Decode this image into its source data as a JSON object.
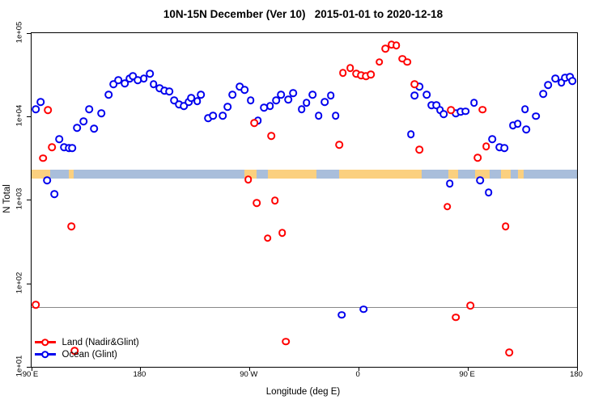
{
  "header": {
    "title": "10N-15N December (Ver 10)   2015-01-01 to 2020-12-18"
  },
  "chart_data": {
    "type": "scatter",
    "title": "10N-15N December (Ver 10)   2015-01-01 to 2020-12-18",
    "xlabel": "Longitude (deg E)",
    "ylabel": "N Total",
    "x_axis": {
      "note": "longitude axis wraps eastward from 90E around the globe to 180",
      "xlim_deg": [
        90,
        540
      ],
      "ticks": [
        {
          "deg": 90,
          "label": "90 E"
        },
        {
          "deg": 180,
          "label": "180"
        },
        {
          "deg": 270,
          "label": "90 W"
        },
        {
          "deg": 360,
          "label": "0"
        },
        {
          "deg": 450,
          "label": "90 E"
        },
        {
          "deg": 540,
          "label": "180"
        }
      ]
    },
    "y_axis": {
      "scale": "log10",
      "ylim": [
        10,
        100000
      ],
      "ticks": [
        {
          "value": 100000,
          "label": "1e+05"
        },
        {
          "value": 10000,
          "label": "1e+04"
        },
        {
          "value": 1000,
          "label": "1e+03"
        },
        {
          "value": 100,
          "label": "1e+02"
        },
        {
          "value": 10,
          "label": "1e+01"
        }
      ]
    },
    "reference_line": {
      "value": 52,
      "color": "#888888"
    },
    "map_band": {
      "value_top": 2300,
      "value_bottom": 1780,
      "ocean_color": "#a9bedb",
      "land_color": "#fbd07f",
      "land_segments_deg": [
        [
          90,
          106
        ],
        [
          121,
          125
        ],
        [
          266,
          276
        ],
        [
          285,
          325
        ],
        [
          344,
          412
        ],
        [
          434,
          442
        ],
        [
          456,
          468
        ],
        [
          477,
          485
        ],
        [
          491,
          496
        ]
      ]
    },
    "series": [
      {
        "name": "Ocean (Glint)",
        "color": "#0000ee",
        "points": [
          [
            94,
            12100
          ],
          [
            98,
            14800
          ],
          [
            103,
            1710
          ],
          [
            109,
            1170
          ],
          [
            113,
            5320
          ],
          [
            117,
            4270
          ],
          [
            121,
            4170
          ],
          [
            124,
            4170
          ],
          [
            128,
            7240
          ],
          [
            133,
            8690
          ],
          [
            138,
            12100
          ],
          [
            142,
            7080
          ],
          [
            148,
            10800
          ],
          [
            154,
            18000
          ],
          [
            158,
            24100
          ],
          [
            162,
            27100
          ],
          [
            167,
            24700
          ],
          [
            171,
            28400
          ],
          [
            174,
            30200
          ],
          [
            178,
            27100
          ],
          [
            183,
            28400
          ],
          [
            188,
            32300
          ],
          [
            191,
            24100
          ],
          [
            196,
            21700
          ],
          [
            200,
            20300
          ],
          [
            204,
            19900
          ],
          [
            208,
            15500
          ],
          [
            212,
            13900
          ],
          [
            216,
            13200
          ],
          [
            220,
            14800
          ],
          [
            222,
            16600
          ],
          [
            227,
            15100
          ],
          [
            230,
            18000
          ],
          [
            236,
            9500
          ],
          [
            240,
            10200
          ],
          [
            248,
            10200
          ],
          [
            252,
            12900
          ],
          [
            256,
            18000
          ],
          [
            262,
            22600
          ],
          [
            266,
            20700
          ],
          [
            271,
            15500
          ],
          [
            277,
            8890
          ],
          [
            282,
            12600
          ],
          [
            287,
            13200
          ],
          [
            292,
            15500
          ],
          [
            296,
            18000
          ],
          [
            302,
            15900
          ],
          [
            306,
            19000
          ],
          [
            313,
            12100
          ],
          [
            317,
            14500
          ],
          [
            322,
            18000
          ],
          [
            327,
            10200
          ],
          [
            332,
            14800
          ],
          [
            337,
            17800
          ],
          [
            341,
            10200
          ],
          [
            346,
            42
          ],
          [
            364,
            49
          ],
          [
            403,
            6080
          ],
          [
            406,
            17800
          ],
          [
            410,
            22600
          ],
          [
            416,
            18000
          ],
          [
            420,
            13600
          ],
          [
            424,
            13600
          ],
          [
            427,
            11800
          ],
          [
            430,
            10600
          ],
          [
            435,
            1560
          ],
          [
            440,
            10800
          ],
          [
            444,
            11300
          ],
          [
            448,
            11500
          ],
          [
            455,
            14500
          ],
          [
            460,
            1710
          ],
          [
            467,
            1230
          ],
          [
            470,
            5320
          ],
          [
            476,
            4270
          ],
          [
            480,
            4170
          ],
          [
            487,
            7800
          ],
          [
            491,
            8130
          ],
          [
            497,
            12100
          ],
          [
            498,
            6930
          ],
          [
            506,
            10000
          ],
          [
            512,
            18500
          ],
          [
            516,
            23600
          ],
          [
            522,
            28400
          ],
          [
            527,
            25300
          ],
          [
            530,
            29000
          ],
          [
            534,
            29700
          ],
          [
            536,
            26500
          ]
        ]
      },
      {
        "name": "Land (Nadir&Glint)",
        "color": "#ff0000",
        "points": [
          [
            94,
            55
          ],
          [
            100,
            3160
          ],
          [
            104,
            11800
          ],
          [
            107,
            4270
          ],
          [
            123,
            479
          ],
          [
            126,
            15.5
          ],
          [
            269,
            1740
          ],
          [
            274,
            8320
          ],
          [
            276,
            910
          ],
          [
            285,
            347
          ],
          [
            288,
            5790
          ],
          [
            291,
            980
          ],
          [
            297,
            400
          ],
          [
            300,
            20
          ],
          [
            344,
            4570
          ],
          [
            347,
            33100
          ],
          [
            353,
            38000
          ],
          [
            358,
            32300
          ],
          [
            362,
            30900
          ],
          [
            366,
            30200
          ],
          [
            370,
            31600
          ],
          [
            377,
            44700
          ],
          [
            382,
            64600
          ],
          [
            387,
            72400
          ],
          [
            391,
            70800
          ],
          [
            396,
            49000
          ],
          [
            400,
            44700
          ],
          [
            406,
            24100
          ],
          [
            410,
            3980
          ],
          [
            433,
            830
          ],
          [
            436,
            11800
          ],
          [
            440,
            39
          ],
          [
            452,
            54
          ],
          [
            458,
            3180
          ],
          [
            462,
            12000
          ],
          [
            465,
            4360
          ],
          [
            481,
            480
          ],
          [
            484,
            14.8
          ]
        ]
      }
    ],
    "legend": {
      "position": "bottom-left",
      "order": [
        "Land (Nadir&Glint)",
        "Ocean (Glint)"
      ]
    }
  }
}
